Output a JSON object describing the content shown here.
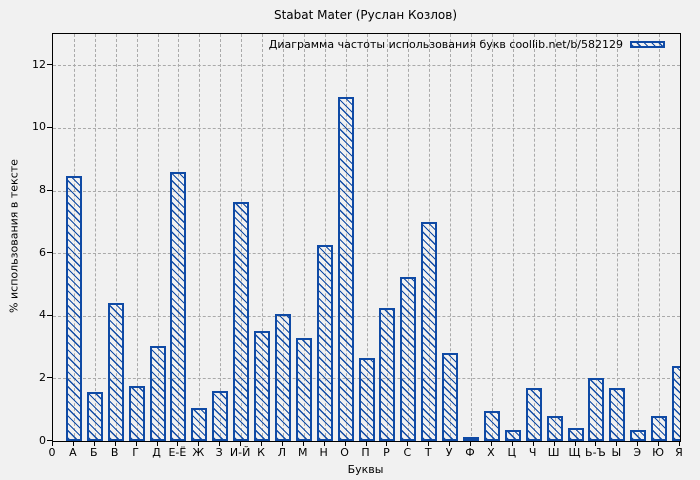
{
  "colors": {
    "bar": "#0f4aa5",
    "grid": "#aaaaaa",
    "background": "#f1f1f1",
    "axis": "#000000",
    "text": "#000000"
  },
  "chart_data": {
    "type": "bar",
    "title": "Stabat Mater (Руслан Козлов)",
    "legend": "Диаграмма частоты использования букв coollib.net/b/582129",
    "legend_position": "top-right-inside",
    "xlabel": "Буквы",
    "ylabel": "% использования в тексте",
    "origin_tick_label": "0",
    "grid": true,
    "ylim": [
      0,
      13
    ],
    "yticks": [
      0,
      2,
      4,
      6,
      8,
      10,
      12
    ],
    "categories": [
      "А",
      "Б",
      "В",
      "Г",
      "Д",
      "Е-Ё",
      "Ж",
      "З",
      "И-Й",
      "К",
      "Л",
      "М",
      "Н",
      "О",
      "П",
      "Р",
      "С",
      "Т",
      "У",
      "Ф",
      "Х",
      "Ц",
      "Ч",
      "Ш",
      "Щ",
      "Ь-Ъ",
      "Ы",
      "Э",
      "Ю",
      "Я"
    ],
    "values": [
      8.45,
      1.55,
      4.4,
      1.75,
      3.05,
      8.6,
      1.05,
      1.6,
      7.65,
      3.5,
      4.05,
      3.3,
      6.25,
      11.0,
      2.65,
      4.25,
      5.25,
      7.0,
      2.8,
      0.1,
      0.95,
      0.35,
      1.7,
      0.8,
      0.4,
      2.0,
      1.7,
      0.35,
      0.8,
      2.4
    ]
  }
}
